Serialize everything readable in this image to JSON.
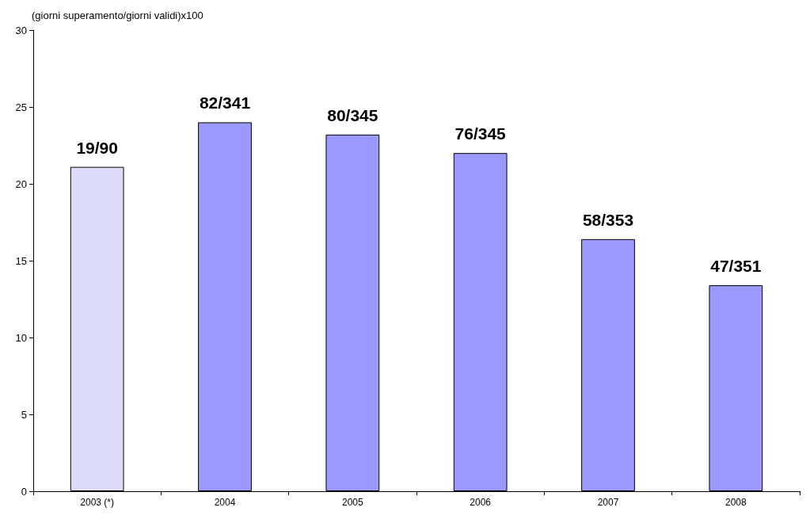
{
  "chart_data": {
    "type": "bar",
    "ylabel": "(giorni superamento/giorni validi)x100",
    "categories": [
      "2003 (*)",
      "2004",
      "2005",
      "2006",
      "2007",
      "2008"
    ],
    "values": [
      21.1,
      24.0,
      23.2,
      22.0,
      16.4,
      13.4
    ],
    "colors": [
      "#dcdcf8",
      "#9999ff",
      "#9999ff",
      "#9999ff",
      "#9999ff",
      "#9999ff"
    ],
    "value_labels": [
      "19/90",
      "82/341",
      "80/345",
      "76/345",
      "58/353",
      "47/351"
    ],
    "ylim": [
      0,
      30
    ],
    "yticks": [
      0,
      5,
      10,
      15,
      20,
      25,
      30
    ],
    "grid": false
  }
}
